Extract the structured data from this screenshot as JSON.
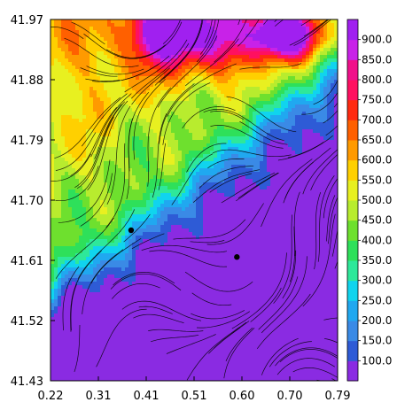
{
  "chart_data": {
    "type": "heatmap",
    "title": "",
    "xlabel": "",
    "ylabel": "",
    "xlim": [
      0.22,
      0.79
    ],
    "ylim": [
      41.43,
      41.97
    ],
    "x_ticks": [
      "0.22",
      "0.31",
      "0.41",
      "0.51",
      "0.60",
      "0.70",
      "0.79"
    ],
    "y_ticks": [
      "41.97",
      "41.88",
      "41.79",
      "41.70",
      "41.61",
      "41.52",
      "41.43"
    ],
    "colorbar": {
      "ticks": [
        "100.0",
        "150.0",
        "200.0",
        "250.0",
        "300.0",
        "350.0",
        "400.0",
        "450.0",
        "500.0",
        "550.0",
        "600.0",
        "650.0",
        "700.0",
        "750.0",
        "800.0",
        "850.0",
        "900.0"
      ],
      "range": [
        50,
        950
      ],
      "colors": [
        "#8a2be2",
        "#2e5bd6",
        "#3a8ae6",
        "#20a8f0",
        "#10d4ee",
        "#2ee89a",
        "#2ee05a",
        "#6ee02e",
        "#b8ec2e",
        "#e8f020",
        "#ffd000",
        "#ff9a00",
        "#ff6000",
        "#ff2a10",
        "#ff1060",
        "#f0108a",
        "#c822e8",
        "#a020f0"
      ]
    },
    "overlay": "streamlines",
    "markers": [
      {
        "x": 0.38,
        "y": 41.655
      },
      {
        "x": 0.59,
        "y": 41.615
      }
    ],
    "grid": false
  }
}
